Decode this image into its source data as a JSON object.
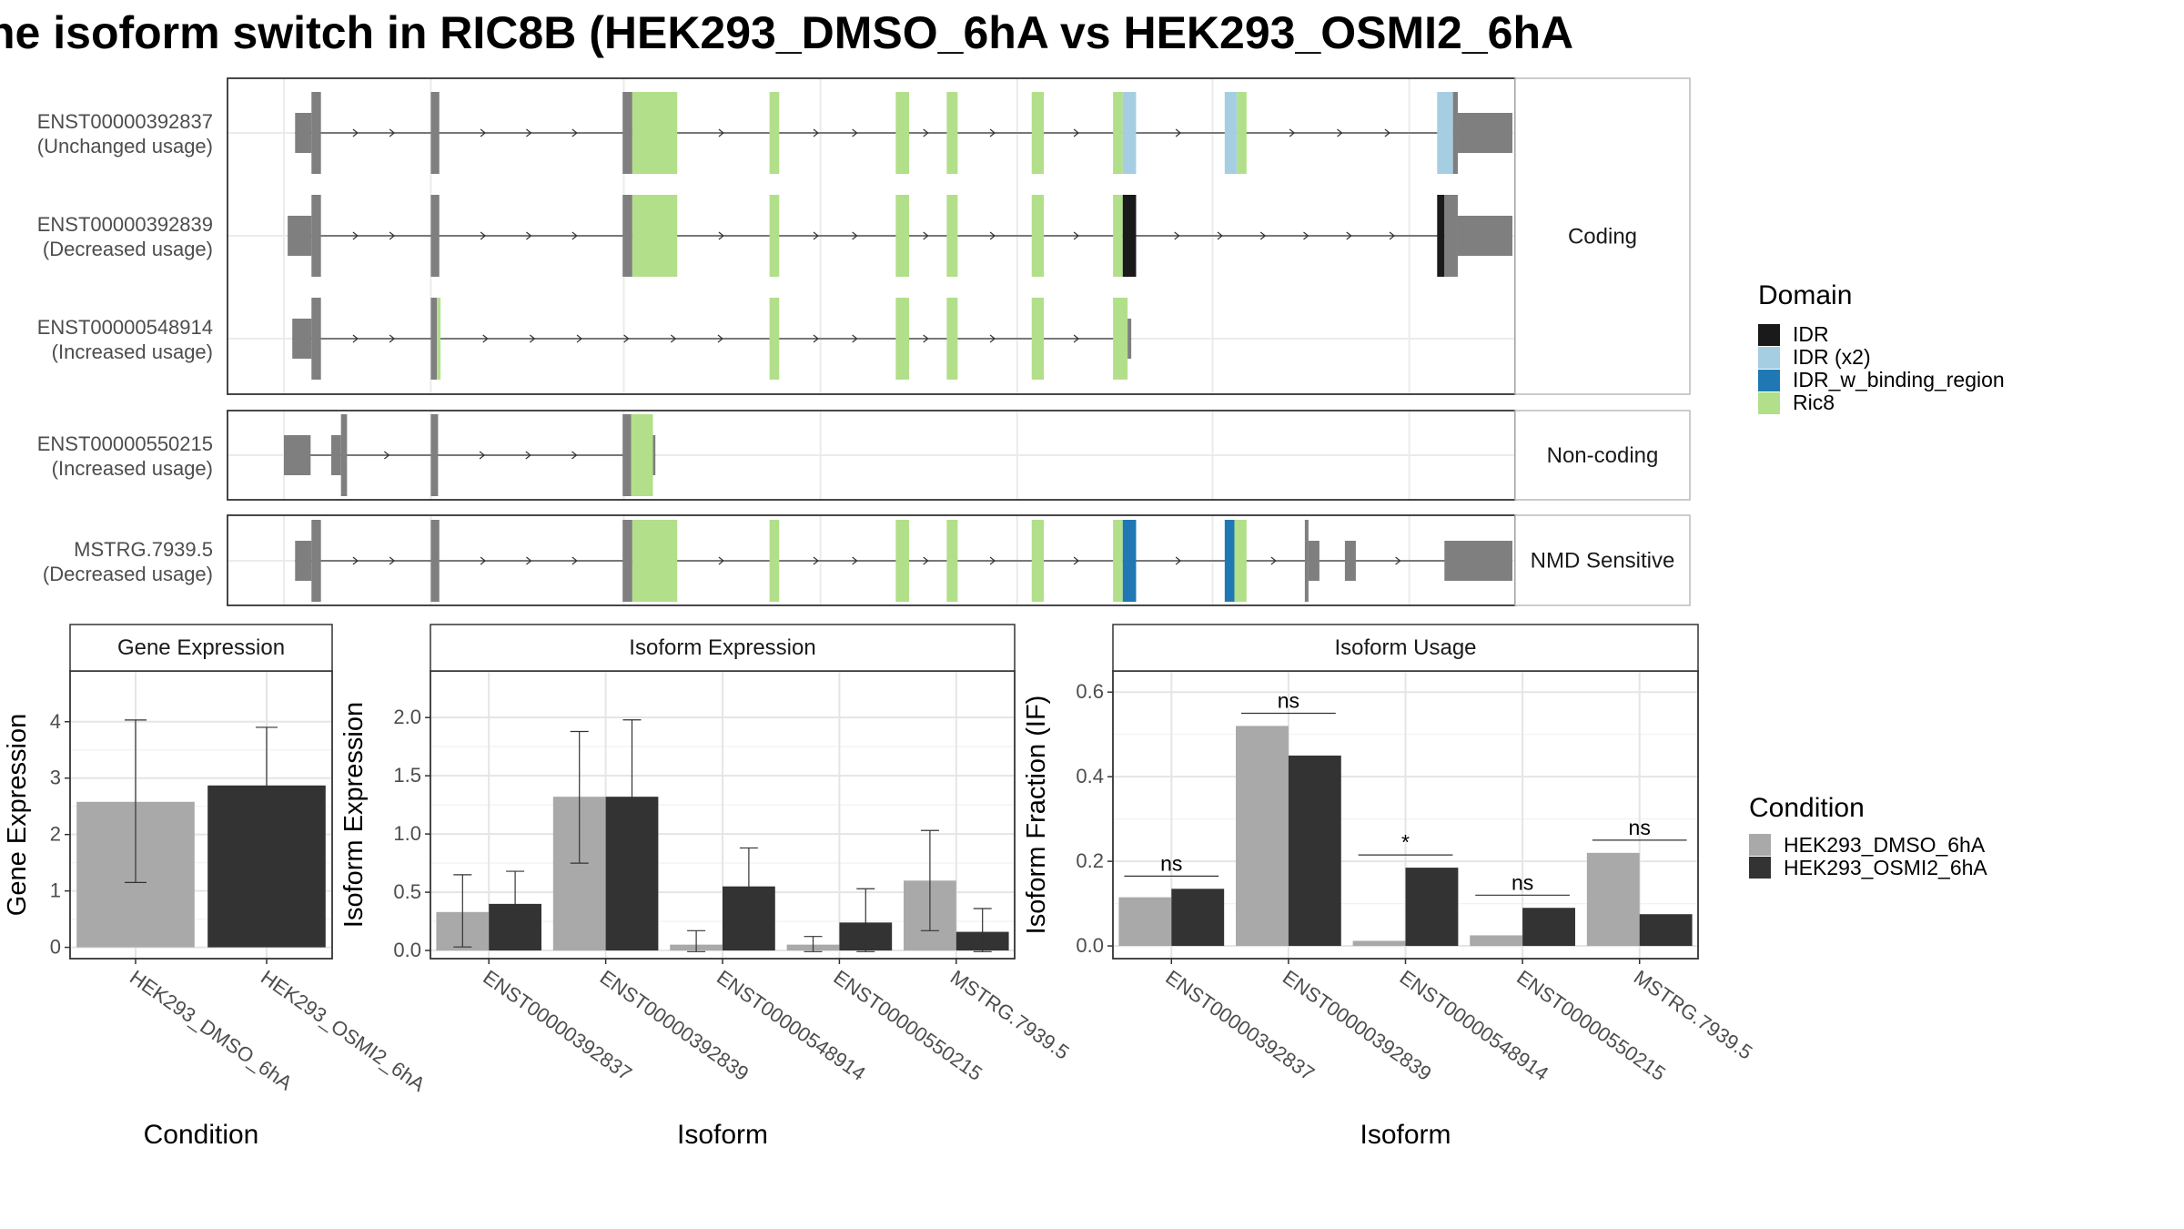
{
  "title": "ne isoform switch in RIC8B (HEK293_DMSO_6hA vs HEK293_OSMI2_6hA",
  "colors": {
    "exon": "#7f7f7f",
    "IDR": "#1a1a1a",
    "IDR (x2)": "#a6cee3",
    "IDR_w_binding_region": "#1f78b4",
    "Ric8": "#b2df8a",
    "cond1": "#a9a9a9",
    "cond2": "#333333"
  },
  "domain_legend": {
    "title": "Domain",
    "items": [
      "IDR",
      "IDR (x2)",
      "IDR_w_binding_region",
      "Ric8"
    ]
  },
  "condition_legend": {
    "title": "Condition",
    "items": [
      "HEK293_DMSO_6hA",
      "HEK293_OSMI2_6hA"
    ]
  },
  "structure": {
    "facets": [
      "Coding",
      "Non-coding",
      "NMD Sensitive"
    ],
    "isoforms": [
      {
        "id": "ENST00000392837",
        "usage": "(Unchanged usage)",
        "facet": "Coding",
        "exons": [
          [
            0.92,
            2.27,
            "thin"
          ],
          [
            2.27,
            3.05,
            "thick"
          ],
          [
            12.1,
            12.8,
            "thick"
          ],
          [
            27.9,
            28.7,
            "thick"
          ],
          [
            28.7,
            32.4,
            "thick",
            "Ric8"
          ],
          [
            40.0,
            40.8,
            "thick",
            "Ric8"
          ],
          [
            50.4,
            51.5,
            "thick",
            "Ric8"
          ],
          [
            54.6,
            55.5,
            "thick",
            "Ric8"
          ],
          [
            61.6,
            62.6,
            "thick",
            "Ric8"
          ],
          [
            68.3,
            69.1,
            "thick",
            "Ric8"
          ],
          [
            69.1,
            70.2,
            "thick",
            "IDR (x2)"
          ],
          [
            77.5,
            78.5,
            "thick",
            "IDR (x2)"
          ],
          [
            78.5,
            79.3,
            "thick",
            "Ric8"
          ],
          [
            95.0,
            96.3,
            "thick",
            "IDR (x2)"
          ],
          [
            96.3,
            96.7,
            "thick"
          ],
          [
            96.7,
            101.2,
            "thin"
          ]
        ]
      },
      {
        "id": "ENST00000392839",
        "usage": "(Decreased usage)",
        "facet": "Coding",
        "exons": [
          [
            0.31,
            2.27,
            "thin"
          ],
          [
            2.27,
            3.05,
            "thick"
          ],
          [
            12.1,
            12.8,
            "thick"
          ],
          [
            27.9,
            28.7,
            "thick"
          ],
          [
            28.7,
            32.4,
            "thick",
            "Ric8"
          ],
          [
            40.0,
            40.8,
            "thick",
            "Ric8"
          ],
          [
            50.4,
            51.5,
            "thick",
            "Ric8"
          ],
          [
            54.6,
            55.5,
            "thick",
            "Ric8"
          ],
          [
            61.6,
            62.6,
            "thick",
            "Ric8"
          ],
          [
            68.3,
            69.1,
            "thick",
            "Ric8"
          ],
          [
            69.1,
            70.2,
            "thick",
            "IDR"
          ],
          [
            95.0,
            95.6,
            "thick",
            "IDR"
          ],
          [
            95.6,
            96.7,
            "thick"
          ],
          [
            96.7,
            101.2,
            "thin"
          ]
        ]
      },
      {
        "id": "ENST00000548914",
        "usage": "(Increased usage)",
        "facet": "Coding",
        "exons": [
          [
            0.69,
            2.27,
            "thin"
          ],
          [
            2.27,
            3.05,
            "thick"
          ],
          [
            12.1,
            12.6,
            "thick"
          ],
          [
            12.6,
            12.9,
            "thick",
            "Ric8"
          ],
          [
            40.0,
            40.8,
            "thick",
            "Ric8"
          ],
          [
            50.4,
            51.5,
            "thick",
            "Ric8"
          ],
          [
            54.6,
            55.5,
            "thick",
            "Ric8"
          ],
          [
            61.6,
            62.6,
            "thick",
            "Ric8"
          ],
          [
            68.3,
            69.5,
            "thick",
            "Ric8"
          ],
          [
            69.5,
            69.8,
            "thin"
          ]
        ]
      },
      {
        "id": "ENST00000550215",
        "usage": "(Increased usage)",
        "facet": "Non-coding",
        "exons": [
          [
            0.0,
            2.2,
            "thin"
          ],
          [
            3.9,
            4.7,
            "thin"
          ],
          [
            4.7,
            5.2,
            "thick"
          ],
          [
            12.1,
            12.7,
            "thick"
          ],
          [
            27.9,
            28.6,
            "thick"
          ],
          [
            28.6,
            30.4,
            "thick",
            "Ric8"
          ],
          [
            30.4,
            30.6,
            "thin"
          ]
        ]
      },
      {
        "id": "MSTRG.7939.5",
        "usage": "(Decreased usage)",
        "facet": "NMD Sensitive",
        "exons": [
          [
            0.92,
            2.27,
            "thin"
          ],
          [
            2.27,
            3.05,
            "thick"
          ],
          [
            12.1,
            12.8,
            "thick"
          ],
          [
            27.9,
            28.7,
            "thick"
          ],
          [
            28.7,
            32.4,
            "thick",
            "Ric8"
          ],
          [
            40.0,
            40.8,
            "thick",
            "Ric8"
          ],
          [
            50.4,
            51.5,
            "thick",
            "Ric8"
          ],
          [
            54.6,
            55.5,
            "thick",
            "Ric8"
          ],
          [
            61.6,
            62.6,
            "thick",
            "Ric8"
          ],
          [
            68.3,
            69.1,
            "thick",
            "Ric8"
          ],
          [
            69.1,
            70.2,
            "thick",
            "IDR_w_binding_region"
          ],
          [
            77.5,
            78.3,
            "thick",
            "IDR_w_binding_region"
          ],
          [
            78.3,
            79.3,
            "thick",
            "Ric8"
          ],
          [
            84.1,
            84.4,
            "thick"
          ],
          [
            84.4,
            85.3,
            "thin"
          ],
          [
            87.4,
            88.3,
            "thin"
          ],
          [
            95.6,
            101.2,
            "thin"
          ]
        ]
      }
    ]
  },
  "chart_data": [
    {
      "type": "bar",
      "title": "Gene Expression",
      "xlabel": "Condition",
      "ylabel": "Gene Expression",
      "ylim": [
        -0.2,
        4.9
      ],
      "yticks": [
        0,
        1,
        2,
        3,
        4
      ],
      "categories": [
        "HEK293_DMSO_6hA",
        "HEK293_OSMI2_6hA"
      ],
      "values": [
        2.58,
        2.87
      ],
      "error_low": [
        1.15,
        1.84
      ],
      "error_high": [
        4.03,
        3.9
      ]
    },
    {
      "type": "bar",
      "title": "Isoform Expression",
      "xlabel": "Isoform",
      "ylabel": "Isoform Expression",
      "ylim": [
        -0.07,
        2.4
      ],
      "yticks": [
        0.0,
        0.5,
        1.0,
        1.5,
        2.0
      ],
      "categories": [
        "ENST00000392837",
        "ENST00000392839",
        "ENST00000548914",
        "ENST00000550215",
        "MSTRG.7939.5"
      ],
      "series": [
        {
          "name": "HEK293_DMSO_6hA",
          "values": [
            0.33,
            1.32,
            0.05,
            0.05,
            0.6
          ],
          "error_low": [
            0.03,
            0.75,
            -0.01,
            -0.01,
            0.17
          ],
          "error_high": [
            0.65,
            1.88,
            0.17,
            0.12,
            1.03
          ]
        },
        {
          "name": "HEK293_OSMI2_6hA",
          "values": [
            0.4,
            1.32,
            0.55,
            0.24,
            0.16
          ],
          "error_low": [
            0.13,
            0.66,
            0.22,
            -0.01,
            -0.01
          ],
          "error_high": [
            0.68,
            1.98,
            0.88,
            0.53,
            0.36
          ]
        }
      ]
    },
    {
      "type": "bar",
      "title": "Isoform Usage",
      "xlabel": "Isoform",
      "ylabel": "Isoform Fraction (IF)",
      "ylim": [
        -0.03,
        0.65
      ],
      "yticks": [
        0.0,
        0.2,
        0.4,
        0.6
      ],
      "categories": [
        "ENST00000392837",
        "ENST00000392839",
        "ENST00000548914",
        "ENST00000550215",
        "MSTRG.7939.5"
      ],
      "series": [
        {
          "name": "HEK293_DMSO_6hA",
          "values": [
            0.115,
            0.52,
            0.012,
            0.025,
            0.22
          ]
        },
        {
          "name": "HEK293_OSMI2_6hA",
          "values": [
            0.135,
            0.45,
            0.185,
            0.09,
            0.075
          ]
        }
      ],
      "significance": [
        "ns",
        "ns",
        "*",
        "ns",
        "ns"
      ],
      "significance_y": [
        0.165,
        0.55,
        0.215,
        0.12,
        0.25
      ]
    }
  ]
}
